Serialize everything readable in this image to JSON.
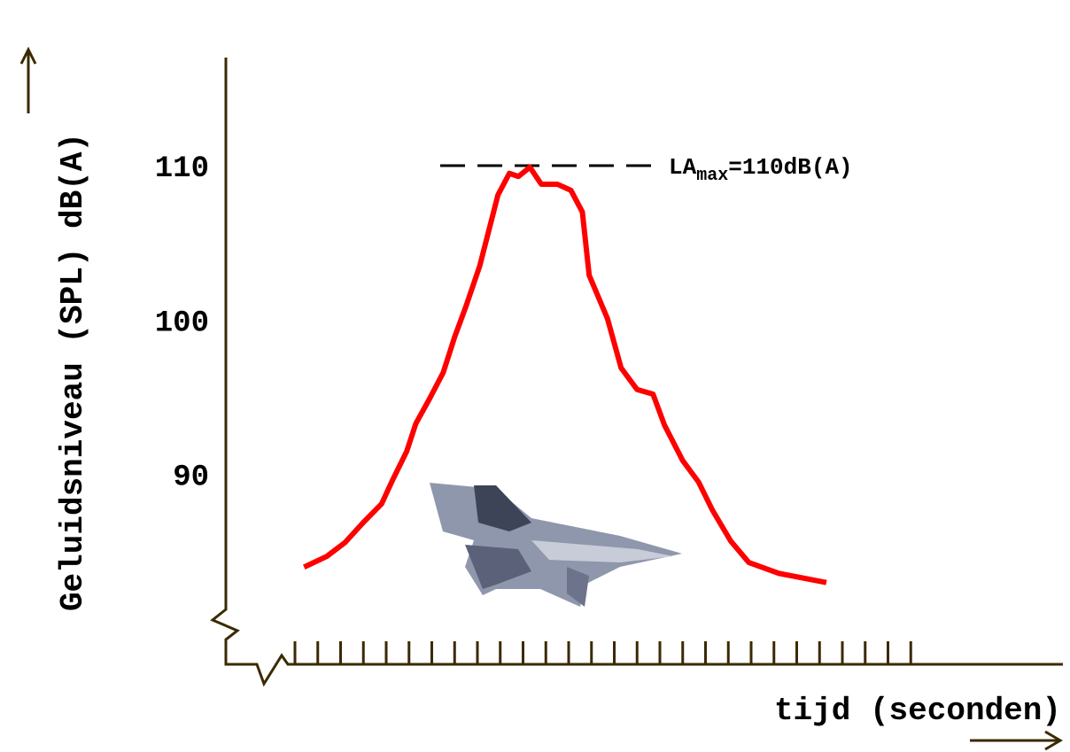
{
  "chart_data": {
    "type": "line",
    "ylabel": "Geluidsniveau (SPL) dB(A)",
    "xlabel": "tijd (seconden)",
    "x": [
      0.4,
      1.4,
      2.2,
      3.0,
      3.8,
      4.3,
      4.9,
      5.3,
      5.9,
      6.5,
      7.0,
      7.5,
      8.1,
      8.5,
      8.9,
      9.4,
      9.8,
      10.3,
      10.8,
      11.5,
      12.1,
      12.6,
      12.9,
      13.7,
      14.3,
      15.0,
      15.7,
      16.2,
      17.0,
      17.7,
      18.3,
      19.1,
      19.9,
      21.2,
      23.3
    ],
    "series": [
      {
        "color": "#ff0000",
        "values": [
          84.0,
          84.7,
          85.6,
          86.9,
          88.1,
          89.7,
          91.5,
          93.3,
          94.9,
          96.6,
          98.9,
          100.9,
          103.5,
          105.8,
          108.1,
          109.5,
          109.3,
          109.9,
          108.8,
          108.8,
          108.4,
          107.0,
          102.9,
          100.1,
          96.9,
          95.5,
          95.2,
          93.2,
          90.9,
          89.5,
          87.7,
          85.7,
          84.3,
          83.6,
          83.0
        ]
      }
    ],
    "ylim": [
      80,
      117
    ],
    "yticks": [
      90,
      100,
      110
    ],
    "xlim": [
      0,
      33.7
    ],
    "xticks": [
      0,
      1,
      2,
      3,
      4,
      5,
      6,
      7,
      8,
      9,
      10,
      11,
      12,
      13,
      14,
      15,
      16,
      17,
      18,
      19,
      20,
      21,
      22,
      23,
      24,
      25,
      26,
      27
    ],
    "annotation": {
      "text": "LA",
      "sub": "max",
      "rest": "=110dB(A)",
      "value": 110
    },
    "axis_color": "#3a2a00"
  }
}
